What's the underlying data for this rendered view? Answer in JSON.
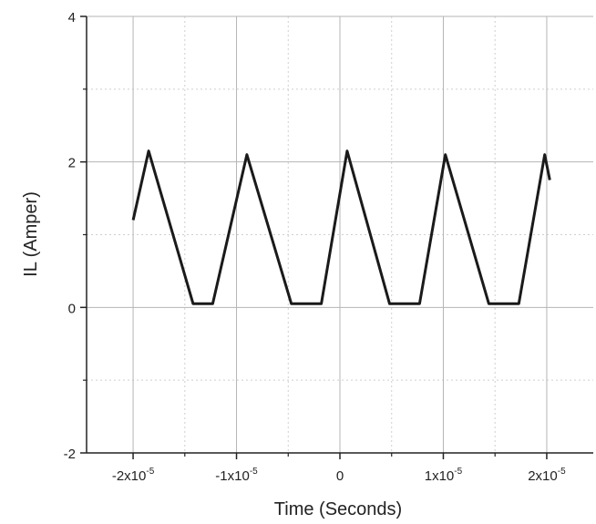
{
  "chart_data": {
    "type": "line",
    "title": "",
    "xlabel": "Time (Seconds)",
    "ylabel": "IL (Amper)",
    "xlim": [
      -2.45e-05,
      2.45e-05
    ],
    "ylim": [
      -2,
      4
    ],
    "grid": true,
    "x_ticks": [
      {
        "value": -2e-05,
        "mantissa": "-2x10",
        "exp": "-5"
      },
      {
        "value": -1e-05,
        "mantissa": "-1x10",
        "exp": "-5"
      },
      {
        "value": 0,
        "mantissa": "0",
        "exp": ""
      },
      {
        "value": 1e-05,
        "mantissa": "1x10",
        "exp": "-5"
      },
      {
        "value": 2e-05,
        "mantissa": "2x10",
        "exp": "-5"
      }
    ],
    "y_ticks": [
      {
        "value": -2,
        "label": "-2"
      },
      {
        "value": 0,
        "label": "0"
      },
      {
        "value": 2,
        "label": "2"
      },
      {
        "value": 4,
        "label": "4"
      }
    ],
    "series": [
      {
        "color": "#1a1a1a",
        "x": [
          -2e-05,
          -1.85e-05,
          -1.42e-05,
          -1.23e-05,
          -1.23e-05,
          -9e-06,
          -4.7e-06,
          -1.8e-06,
          -1.8e-06,
          7e-07,
          4.8e-06,
          7.7e-06,
          7.7e-06,
          1.02e-05,
          1.44e-05,
          1.73e-05,
          1.73e-05,
          1.98e-05,
          2.03e-05
        ],
        "y": [
          1.2,
          2.15,
          0.05,
          0.05,
          0.05,
          2.1,
          0.05,
          0.05,
          0.05,
          2.15,
          0.05,
          0.05,
          0.05,
          2.1,
          0.05,
          0.05,
          0.05,
          2.1,
          1.75
        ]
      }
    ]
  }
}
